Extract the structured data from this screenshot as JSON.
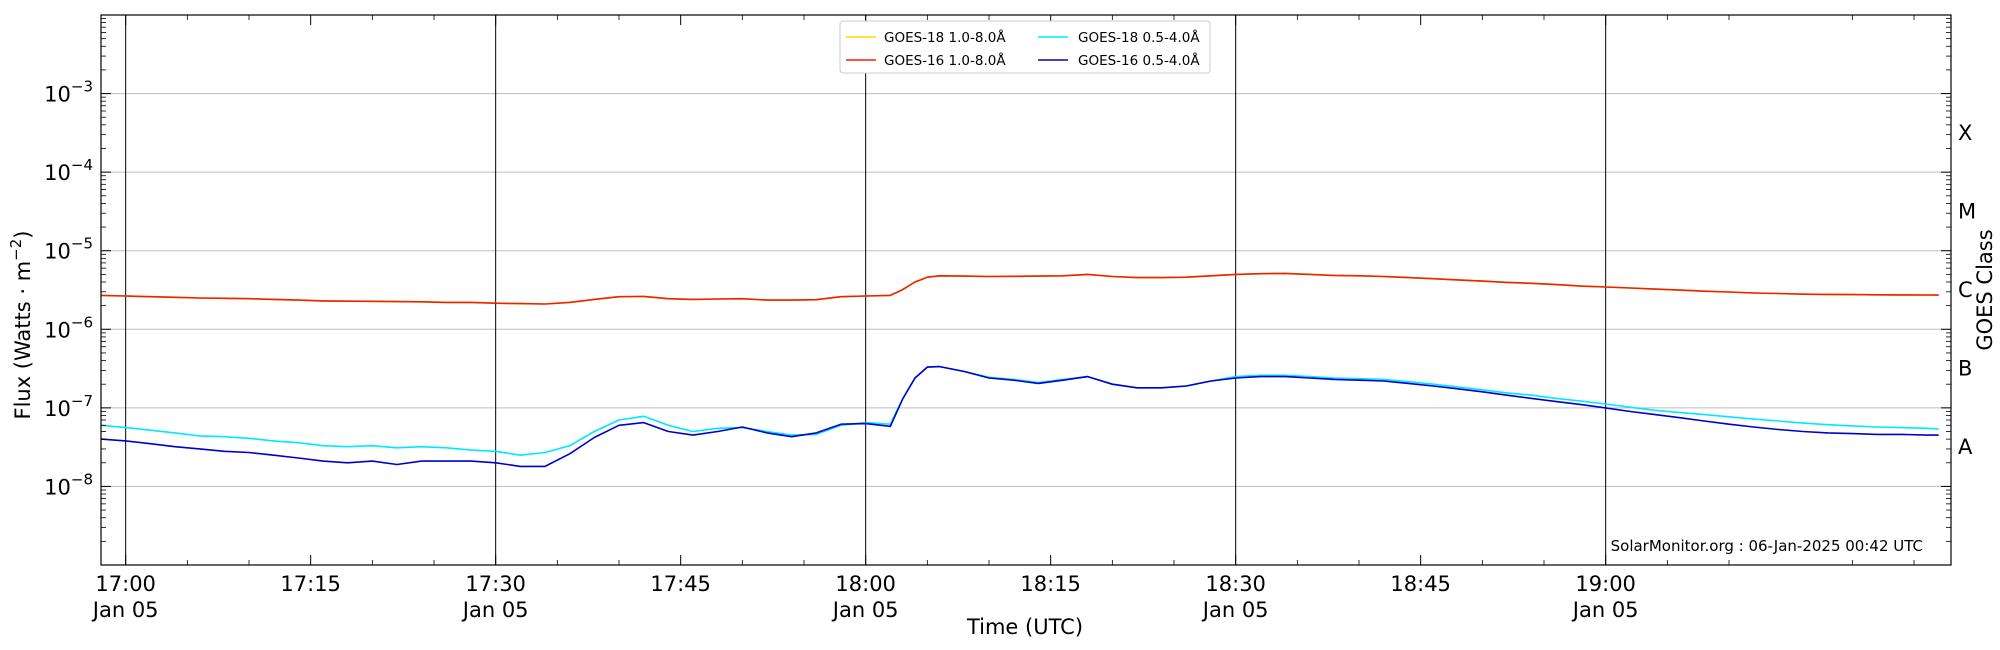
{
  "chart_data": {
    "type": "line",
    "title": "",
    "xlabel": "Time (UTC)",
    "ylabel": "Flux (Watts · m",
    "ylabel_sup": "−2",
    "ylabel_close": ")",
    "y2label": "GOES Class",
    "yscale": "log",
    "ylim": [
      1e-09,
      0.01
    ],
    "xlim": [
      "16:58",
      "19:28"
    ],
    "grid": "horizontal",
    "legend_position": "top-center",
    "credit": "SolarMonitor.org : 06-Jan-2025 00:42 UTC",
    "x_ticks": [
      {
        "time": "17:00",
        "line1": "17:00",
        "line2": "Jan 05"
      },
      {
        "time": "17:15",
        "line1": "17:15",
        "line2": ""
      },
      {
        "time": "17:30",
        "line1": "17:30",
        "line2": "Jan 05"
      },
      {
        "time": "17:45",
        "line1": "17:45",
        "line2": ""
      },
      {
        "time": "18:00",
        "line1": "18:00",
        "line2": "Jan 05"
      },
      {
        "time": "18:15",
        "line1": "18:15",
        "line2": ""
      },
      {
        "time": "18:30",
        "line1": "18:30",
        "line2": "Jan 05"
      },
      {
        "time": "18:45",
        "line1": "18:45",
        "line2": ""
      },
      {
        "time": "19:00",
        "line1": "19:00",
        "line2": "Jan 05"
      }
    ],
    "vlines": [
      "17:00",
      "17:30",
      "18:00",
      "18:30",
      "19:00"
    ],
    "y_ticks": [
      {
        "exp": -8,
        "base": "10",
        "sup": "−8"
      },
      {
        "exp": -7,
        "base": "10",
        "sup": "−7"
      },
      {
        "exp": -6,
        "base": "10",
        "sup": "−6"
      },
      {
        "exp": -5,
        "base": "10",
        "sup": "−5"
      },
      {
        "exp": -4,
        "base": "10",
        "sup": "−4"
      },
      {
        "exp": -3,
        "base": "10",
        "sup": "−3"
      }
    ],
    "classes": [
      {
        "label": "A",
        "exp": -8
      },
      {
        "label": "B",
        "exp": -7
      },
      {
        "label": "C",
        "exp": -6
      },
      {
        "label": "M",
        "exp": -5
      },
      {
        "label": "X",
        "exp": -4
      }
    ],
    "x": [
      "16:58",
      "17:00",
      "17:02",
      "17:04",
      "17:06",
      "17:08",
      "17:10",
      "17:12",
      "17:14",
      "17:16",
      "17:18",
      "17:20",
      "17:22",
      "17:24",
      "17:26",
      "17:28",
      "17:30",
      "17:32",
      "17:34",
      "17:36",
      "17:38",
      "17:40",
      "17:42",
      "17:44",
      "17:46",
      "17:48",
      "17:50",
      "17:52",
      "17:54",
      "17:56",
      "17:58",
      "18:00",
      "18:02",
      "18:03",
      "18:04",
      "18:05",
      "18:06",
      "18:08",
      "18:10",
      "18:12",
      "18:14",
      "18:16",
      "18:18",
      "18:20",
      "18:22",
      "18:24",
      "18:26",
      "18:28",
      "18:30",
      "18:32",
      "18:34",
      "18:36",
      "18:38",
      "18:40",
      "18:42",
      "18:44",
      "18:46",
      "18:48",
      "18:50",
      "18:52",
      "18:54",
      "18:56",
      "18:58",
      "19:00",
      "19:02",
      "19:04",
      "19:06",
      "19:08",
      "19:10",
      "19:12",
      "19:14",
      "19:16",
      "19:18",
      "19:20",
      "19:22",
      "19:24",
      "19:26",
      "19:27"
    ],
    "series": [
      {
        "name": "GOES-18 1.0-8.0Å",
        "color": "#ffd700",
        "values": [
          2.7e-06,
          2.65e-06,
          2.6e-06,
          2.55e-06,
          2.5e-06,
          2.48e-06,
          2.45e-06,
          2.4e-06,
          2.35e-06,
          2.3e-06,
          2.28e-06,
          2.27e-06,
          2.25e-06,
          2.24e-06,
          2.2e-06,
          2.2e-06,
          2.15e-06,
          2.12e-06,
          2.1e-06,
          2.2e-06,
          2.4e-06,
          2.6e-06,
          2.62e-06,
          2.45e-06,
          2.4e-06,
          2.43e-06,
          2.45e-06,
          2.35e-06,
          2.35e-06,
          2.38e-06,
          2.6e-06,
          2.65e-06,
          2.7e-06,
          3.2e-06,
          4e-06,
          4.6e-06,
          4.8e-06,
          4.75e-06,
          4.7e-06,
          4.72e-06,
          4.75e-06,
          4.8e-06,
          5e-06,
          4.7e-06,
          4.55e-06,
          4.55e-06,
          4.6e-06,
          4.8e-06,
          5e-06,
          5.1e-06,
          5.15e-06,
          5e-06,
          4.85e-06,
          4.8e-06,
          4.7e-06,
          4.55e-06,
          4.4e-06,
          4.25e-06,
          4.1e-06,
          3.95e-06,
          3.85e-06,
          3.7e-06,
          3.55e-06,
          3.45e-06,
          3.35e-06,
          3.25e-06,
          3.15e-06,
          3.05e-06,
          2.98e-06,
          2.9e-06,
          2.85e-06,
          2.8e-06,
          2.78e-06,
          2.76e-06,
          2.75e-06,
          2.74e-06,
          2.73e-06,
          2.72e-06
        ]
      },
      {
        "name": "GOES-16 1.0-8.0Å",
        "color": "#ee2200",
        "values": [
          2.7e-06,
          2.65e-06,
          2.6e-06,
          2.55e-06,
          2.5e-06,
          2.48e-06,
          2.45e-06,
          2.4e-06,
          2.35e-06,
          2.3e-06,
          2.28e-06,
          2.27e-06,
          2.25e-06,
          2.24e-06,
          2.2e-06,
          2.2e-06,
          2.15e-06,
          2.12e-06,
          2.1e-06,
          2.2e-06,
          2.4e-06,
          2.6e-06,
          2.62e-06,
          2.45e-06,
          2.4e-06,
          2.43e-06,
          2.45e-06,
          2.35e-06,
          2.35e-06,
          2.38e-06,
          2.6e-06,
          2.65e-06,
          2.7e-06,
          3.2e-06,
          4e-06,
          4.6e-06,
          4.8e-06,
          4.75e-06,
          4.7e-06,
          4.72e-06,
          4.75e-06,
          4.8e-06,
          5e-06,
          4.7e-06,
          4.55e-06,
          4.55e-06,
          4.6e-06,
          4.8e-06,
          5e-06,
          5.1e-06,
          5.15e-06,
          5e-06,
          4.85e-06,
          4.8e-06,
          4.7e-06,
          4.55e-06,
          4.4e-06,
          4.25e-06,
          4.1e-06,
          3.95e-06,
          3.85e-06,
          3.7e-06,
          3.55e-06,
          3.45e-06,
          3.35e-06,
          3.25e-06,
          3.15e-06,
          3.05e-06,
          2.98e-06,
          2.9e-06,
          2.85e-06,
          2.8e-06,
          2.78e-06,
          2.76e-06,
          2.75e-06,
          2.74e-06,
          2.73e-06,
          2.72e-06
        ]
      },
      {
        "name": "GOES-18 0.5-4.0Å",
        "color": "#00e8ff",
        "values": [
          6e-08,
          5.6e-08,
          5.2e-08,
          4.8e-08,
          4.4e-08,
          4.3e-08,
          4.1e-08,
          3.8e-08,
          3.6e-08,
          3.3e-08,
          3.2e-08,
          3.3e-08,
          3.1e-08,
          3.2e-08,
          3.1e-08,
          2.9e-08,
          2.8e-08,
          2.5e-08,
          2.7e-08,
          3.3e-08,
          5e-08,
          7e-08,
          7.8e-08,
          6e-08,
          5e-08,
          5.5e-08,
          5.6e-08,
          5e-08,
          4.5e-08,
          4.6e-08,
          6e-08,
          6.5e-08,
          6.2e-08,
          1.3e-07,
          2.4e-07,
          3.3e-07,
          3.35e-07,
          2.9e-07,
          2.45e-07,
          2.3e-07,
          2.1e-07,
          2.3e-07,
          2.5e-07,
          2e-07,
          1.8e-07,
          1.8e-07,
          1.9e-07,
          2.2e-07,
          2.5e-07,
          2.6e-07,
          2.6e-07,
          2.5e-07,
          2.4e-07,
          2.35e-07,
          2.3e-07,
          2.15e-07,
          2e-07,
          1.85e-07,
          1.7e-07,
          1.55e-07,
          1.45e-07,
          1.32e-07,
          1.22e-07,
          1.12e-07,
          1.02e-07,
          9.3e-08,
          8.7e-08,
          8.2e-08,
          7.7e-08,
          7.2e-08,
          6.8e-08,
          6.4e-08,
          6.1e-08,
          5.9e-08,
          5.7e-08,
          5.6e-08,
          5.5e-08,
          5.4e-08
        ]
      },
      {
        "name": "GOES-16 0.5-4.0Å",
        "color": "#0000cc",
        "values": [
          4e-08,
          3.8e-08,
          3.5e-08,
          3.2e-08,
          3e-08,
          2.8e-08,
          2.7e-08,
          2.5e-08,
          2.3e-08,
          2.1e-08,
          2e-08,
          2.1e-08,
          1.9e-08,
          2.1e-08,
          2.1e-08,
          2.1e-08,
          2e-08,
          1.8e-08,
          1.8e-08,
          2.6e-08,
          4.2e-08,
          6e-08,
          6.5e-08,
          5e-08,
          4.5e-08,
          5e-08,
          5.7e-08,
          4.8e-08,
          4.3e-08,
          4.8e-08,
          6.2e-08,
          6.3e-08,
          5.8e-08,
          1.3e-07,
          2.4e-07,
          3.3e-07,
          3.35e-07,
          2.9e-07,
          2.4e-07,
          2.25e-07,
          2.05e-07,
          2.25e-07,
          2.5e-07,
          2e-07,
          1.8e-07,
          1.8e-07,
          1.9e-07,
          2.2e-07,
          2.4e-07,
          2.5e-07,
          2.5e-07,
          2.4e-07,
          2.3e-07,
          2.25e-07,
          2.2e-07,
          2.05e-07,
          1.9e-07,
          1.75e-07,
          1.6e-07,
          1.45e-07,
          1.32e-07,
          1.2e-07,
          1.1e-07,
          1e-07,
          9e-08,
          8.2e-08,
          7.5e-08,
          6.8e-08,
          6.2e-08,
          5.7e-08,
          5.3e-08,
          5e-08,
          4.8e-08,
          4.7e-08,
          4.6e-08,
          4.6e-08,
          4.5e-08,
          4.5e-08
        ]
      }
    ]
  }
}
